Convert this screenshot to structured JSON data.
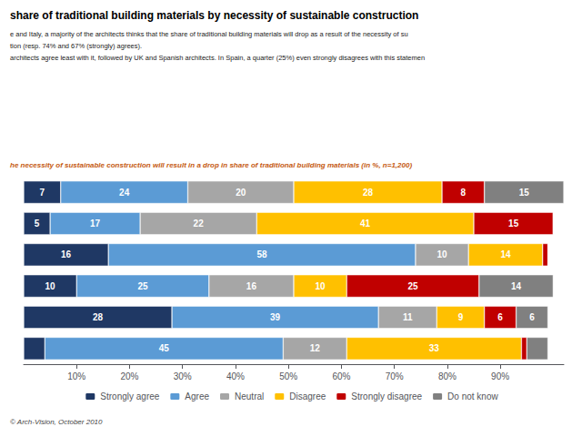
{
  "chart_data": {
    "type": "bar",
    "orientation": "horizontal",
    "stacked": true,
    "title": "share of traditional building materials by necessity of sustainable construction",
    "subtitle": [
      "e and Italy, a majority of the architects thinks that the share of traditional building materials will drop as a result of the necessity of su",
      "tion (resp. 74% and 67% (strongly) agrees).",
      "architects agree least with it, followed by UK and Spanish architects. In Spain, a quarter (25%) even strongly disagrees with this statemen"
    ],
    "annotations": [
      "he necessity of sustainable construction will result in a drop in share of traditional building materials (in %, n=1,200)",
      "© Arch-Vision, October 2010"
    ],
    "categories": [
      null,
      null,
      null,
      null,
      null,
      null
    ],
    "series": [
      {
        "name": "Strongly agree",
        "color": "#1f3864",
        "values": [
          7,
          5,
          16,
          10,
          28,
          4
        ],
        "value_labels": [
          "7",
          "5",
          "16",
          "10",
          "28",
          null
        ]
      },
      {
        "name": "Agree",
        "color": "#5b9bd5",
        "values": [
          24,
          17,
          58,
          25,
          39,
          45
        ],
        "value_labels": [
          "24",
          "17",
          "58",
          "25",
          "39",
          "45"
        ]
      },
      {
        "name": "Neutral",
        "color": "#a6a6a6",
        "values": [
          20,
          22,
          10,
          16,
          11,
          12
        ],
        "value_labels": [
          "20",
          "22",
          "10",
          "16",
          "11",
          "12"
        ]
      },
      {
        "name": "Disagree",
        "color": "#ffc000",
        "values": [
          28,
          41,
          14,
          10,
          9,
          33
        ],
        "value_labels": [
          "28",
          "41",
          "14",
          "10",
          "9",
          "33"
        ]
      },
      {
        "name": "Strongly disagree",
        "color": "#c00000",
        "values": [
          8,
          15,
          1,
          25,
          6,
          1
        ],
        "value_labels": [
          "8",
          "15",
          null,
          "25",
          "6",
          null
        ]
      },
      {
        "name": "Do not know",
        "color": "#808080",
        "values": [
          15,
          0,
          0,
          14,
          6,
          4
        ],
        "value_labels": [
          "15",
          null,
          null,
          "14",
          "6",
          null
        ]
      }
    ],
    "xlim": [
      0,
      102
    ],
    "xticks": [
      {
        "value": 10,
        "label": "10%"
      },
      {
        "value": 20,
        "label": "20%"
      },
      {
        "value": 30,
        "label": "30%"
      },
      {
        "value": 40,
        "label": "40%"
      },
      {
        "value": 50,
        "label": "50%"
      },
      {
        "value": 60,
        "label": "60%"
      },
      {
        "value": 70,
        "label": "70%"
      },
      {
        "value": 80,
        "label": "80%"
      },
      {
        "value": 90,
        "label": "90%"
      }
    ],
    "grid": false,
    "legend": "bottom",
    "data_labels": true,
    "tick_labels": "x"
  }
}
